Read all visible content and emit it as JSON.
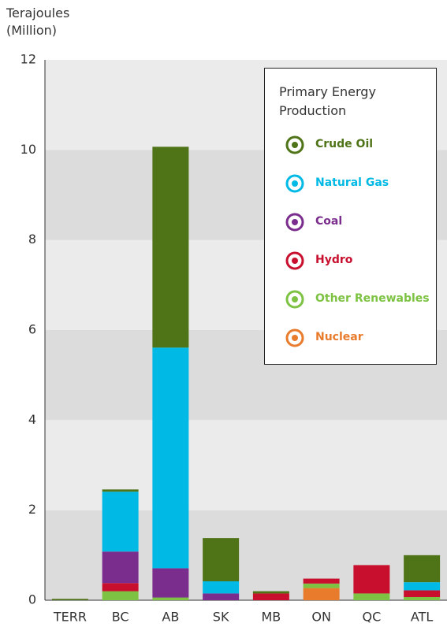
{
  "chart_data": {
    "type": "stacked_bar",
    "y_label": "Terajoules (Million)",
    "legend_title": "Primary Energy Production",
    "categories": [
      "TERR",
      "BC",
      "AB",
      "SK",
      "MB",
      "ON",
      "QC",
      "ATL"
    ],
    "series": [
      {
        "name": "Nuclear",
        "color": "#e87b2c",
        "values": [
          0,
          0,
          0,
          0,
          0,
          0.27,
          0,
          0
        ]
      },
      {
        "name": "Other Renewables",
        "color": "#7dc243",
        "values": [
          0,
          0.2,
          0.06,
          0,
          0,
          0.1,
          0.15,
          0.07
        ]
      },
      {
        "name": "Hydro",
        "color": "#c8102e",
        "values": [
          0,
          0.18,
          0,
          0,
          0.15,
          0.11,
          0.63,
          0.15
        ]
      },
      {
        "name": "Coal",
        "color": "#7b2d8e",
        "values": [
          0,
          0.7,
          0.65,
          0.15,
          0,
          0,
          0,
          0
        ]
      },
      {
        "name": "Natural Gas",
        "color": "#00b9e4",
        "values": [
          0,
          1.33,
          4.9,
          0.27,
          0,
          0,
          0,
          0.18
        ]
      },
      {
        "name": "Crude Oil",
        "color": "#4f7317",
        "values": [
          0.03,
          0.05,
          4.46,
          0.96,
          0.05,
          0,
          0,
          0.6
        ]
      }
    ],
    "ylim": [
      0,
      12
    ],
    "yticks": [
      0,
      2,
      4,
      6,
      8,
      10,
      12
    ],
    "grid": "bands"
  }
}
